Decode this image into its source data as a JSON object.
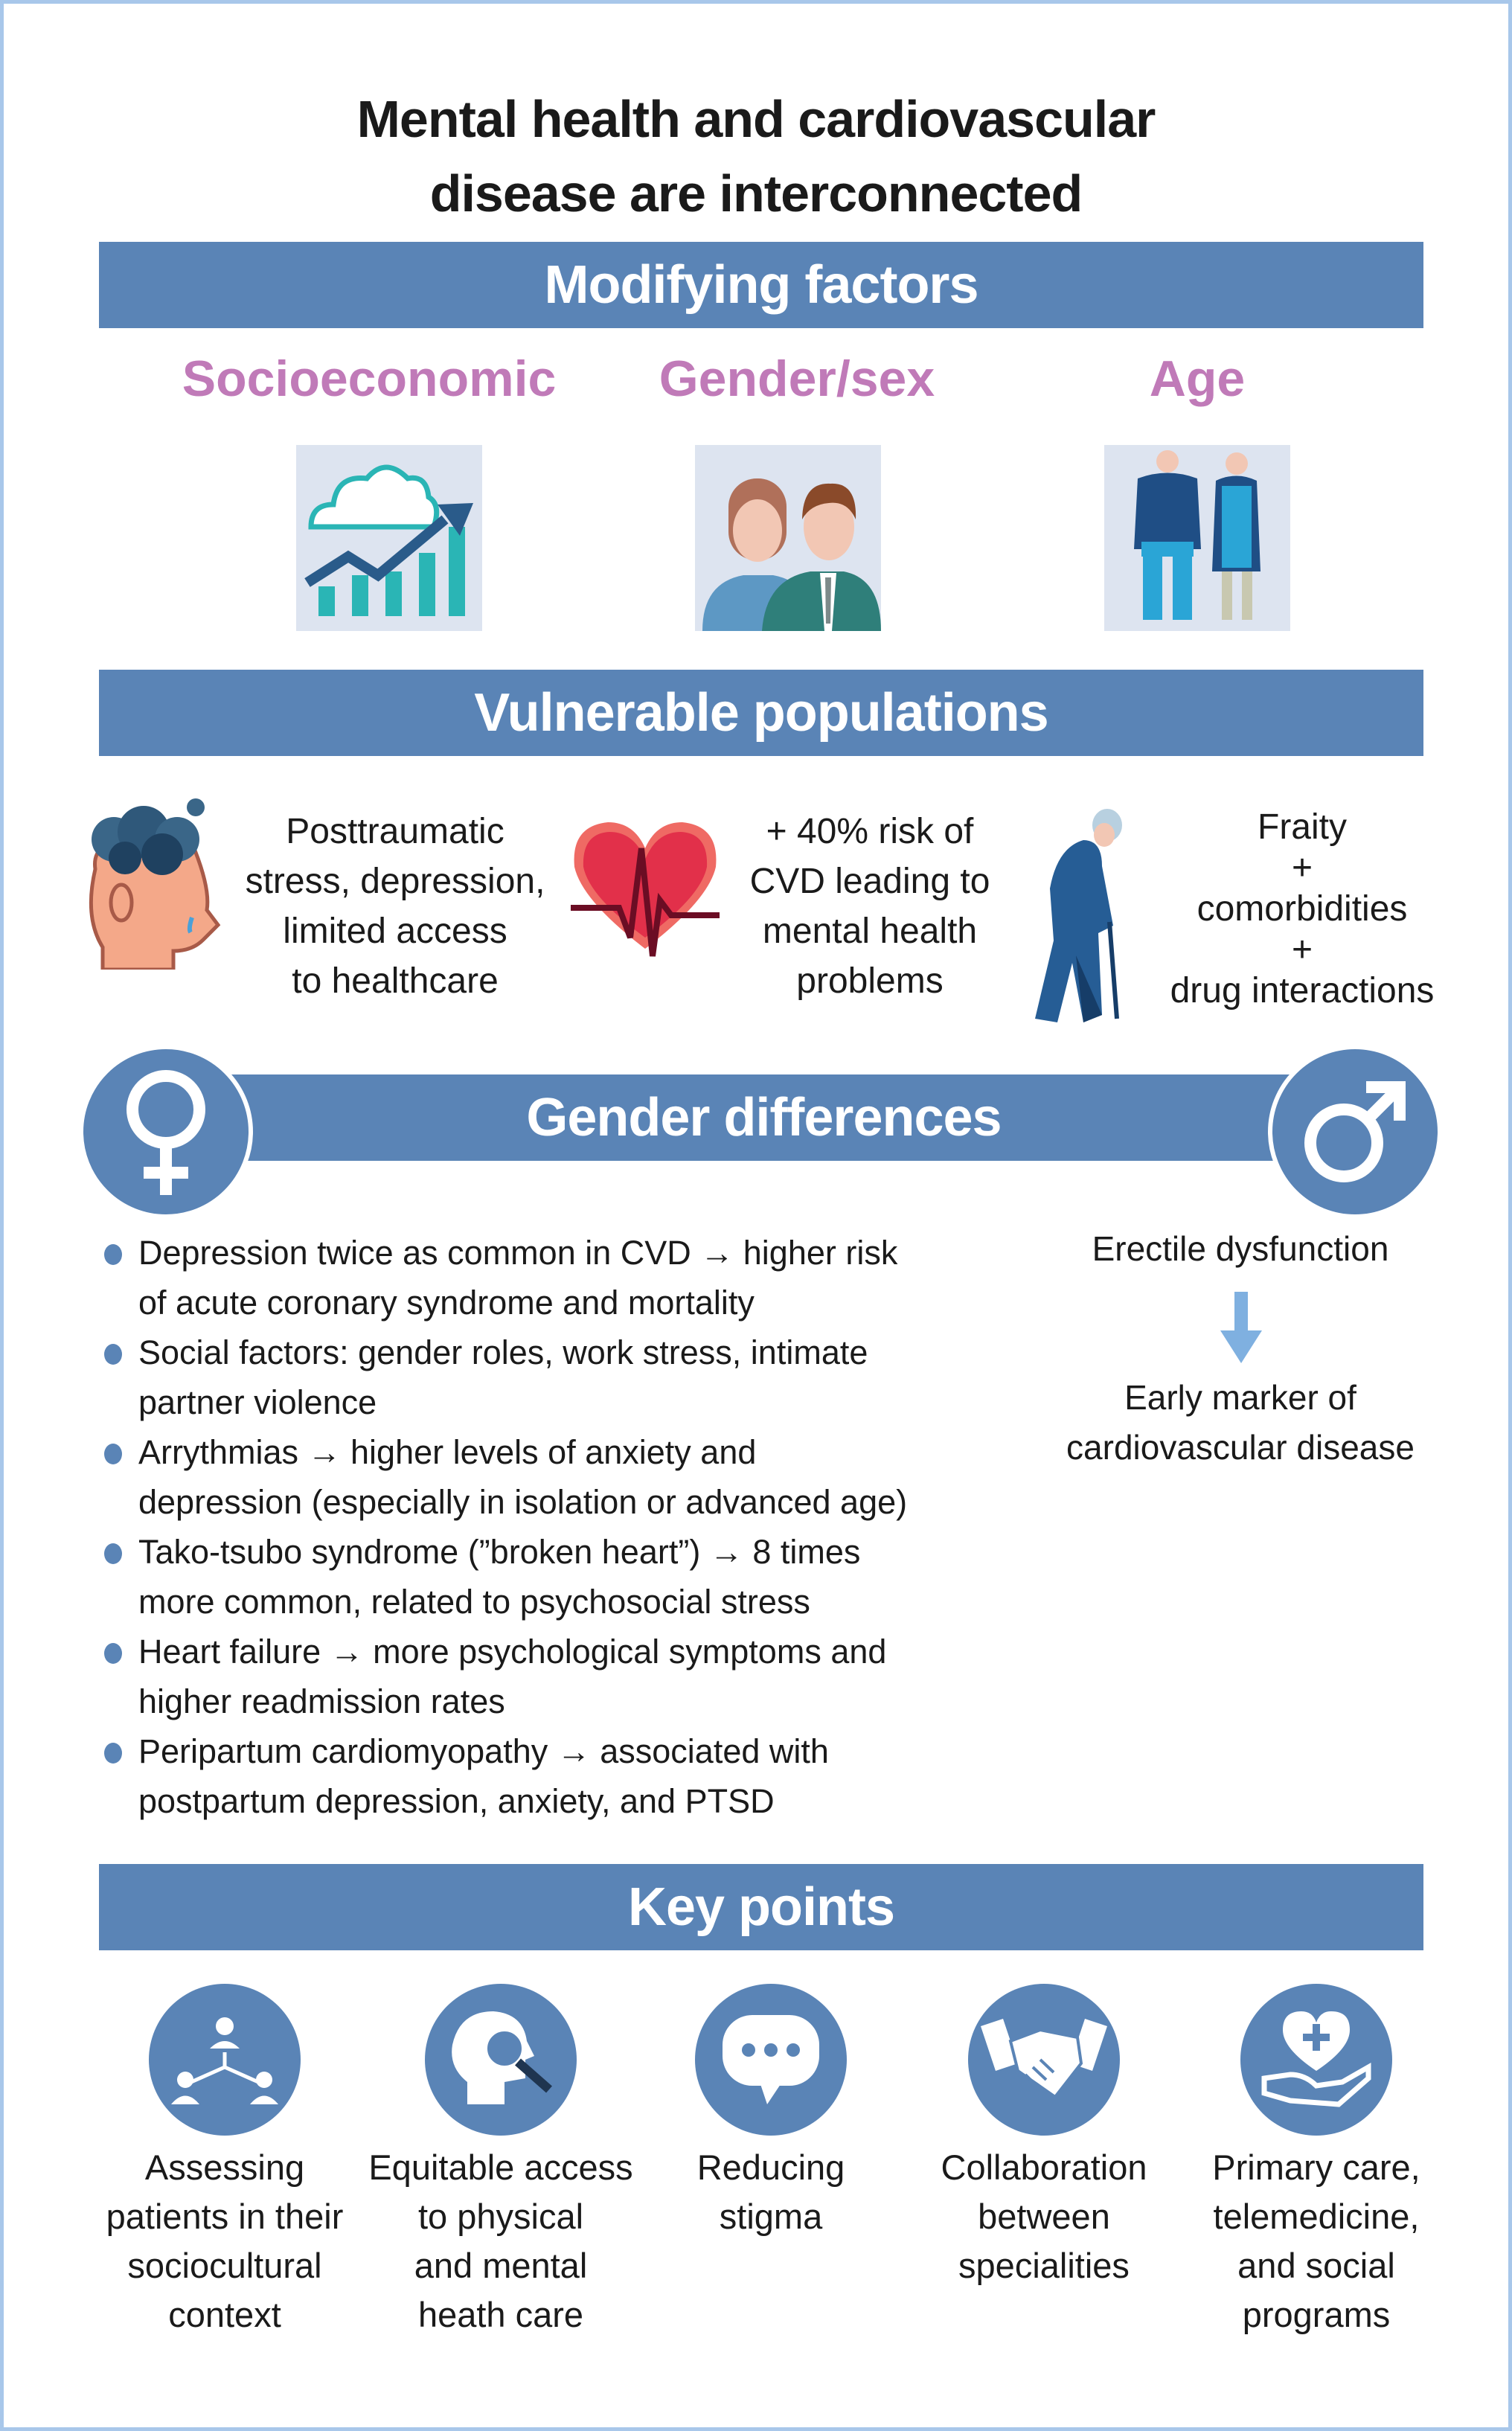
{
  "title": {
    "line1": "Mental health and cardiovascular",
    "line2": "disease are interconnected"
  },
  "colors": {
    "banner": "#5a84b6",
    "heading_pink": "#c07ab8",
    "icon_box": "#dde4f0",
    "border": "#a8c7ea",
    "arrow": "#7fb0e0"
  },
  "modifying": {
    "banner": "Modifying factors",
    "items": [
      {
        "label": "Socioeconomic",
        "icon": "cloud-growth-chart-icon"
      },
      {
        "label": "Gender/sex",
        "icon": "woman-man-icon"
      },
      {
        "label": "Age",
        "icon": "elderly-couple-icon"
      }
    ]
  },
  "vulnerable": {
    "banner": "Vulnerable populations",
    "items": [
      {
        "icon": "stressed-head-icon",
        "lines": [
          "Posttraumatic",
          "stress, depression,",
          "limited access",
          "to healthcare"
        ]
      },
      {
        "icon": "heartbeat-heart-icon",
        "lines": [
          "+ 40% risk of",
          "CVD leading to",
          "mental health",
          "problems"
        ]
      },
      {
        "icon": "elderly-man-cane-icon",
        "lines": [
          "Fraity",
          "+",
          "comorbidities",
          "+",
          "drug interactions"
        ]
      }
    ]
  },
  "gender": {
    "banner": "Gender differences",
    "female_icon": "female-symbol-icon",
    "male_icon": "male-symbol-icon",
    "bullets": [
      {
        "l1": "Depression twice as common in CVD →  higher risk",
        "l2": "of acute coronary syndrome and mortality"
      },
      {
        "l1": "Social factors: gender roles, work stress, intimate",
        "l2": "partner violence"
      },
      {
        "l1": "Arrythmias → higher levels of anxiety and",
        "l2": "depression (especially in isolation or advanced age)"
      },
      {
        "l1": "Tako-tsubo syndrome (”broken heart”)  → 8 times",
        "l2": "more common, related to psychosocial stress"
      },
      {
        "l1": "Heart failure → more psychological symptoms and",
        "l2": "higher readmission rates"
      },
      {
        "l1": "Peripartum cardiomyopathy → associated with",
        "l2": "postpartum depression, anxiety, and PTSD"
      }
    ],
    "male": {
      "top": "Erectile dysfunction",
      "bottom1": "Early marker of",
      "bottom2": "cardiovascular disease"
    }
  },
  "key_points": {
    "banner": "Key points",
    "items": [
      {
        "icon": "people-network-icon",
        "lines": [
          "Assessing",
          "patients in their",
          "sociocultural",
          "context"
        ]
      },
      {
        "icon": "head-magnifier-icon",
        "lines": [
          "Equitable access",
          "to physical",
          "and mental",
          "heath care"
        ]
      },
      {
        "icon": "speech-bubble-icon",
        "lines": [
          "Reducing",
          "stigma"
        ]
      },
      {
        "icon": "handshake-icon",
        "lines": [
          "Collaboration",
          "between",
          "specialities"
        ]
      },
      {
        "icon": "heart-hand-icon",
        "lines": [
          "Primary care,",
          "telemedicine,",
          "and social",
          "programs"
        ]
      }
    ]
  }
}
